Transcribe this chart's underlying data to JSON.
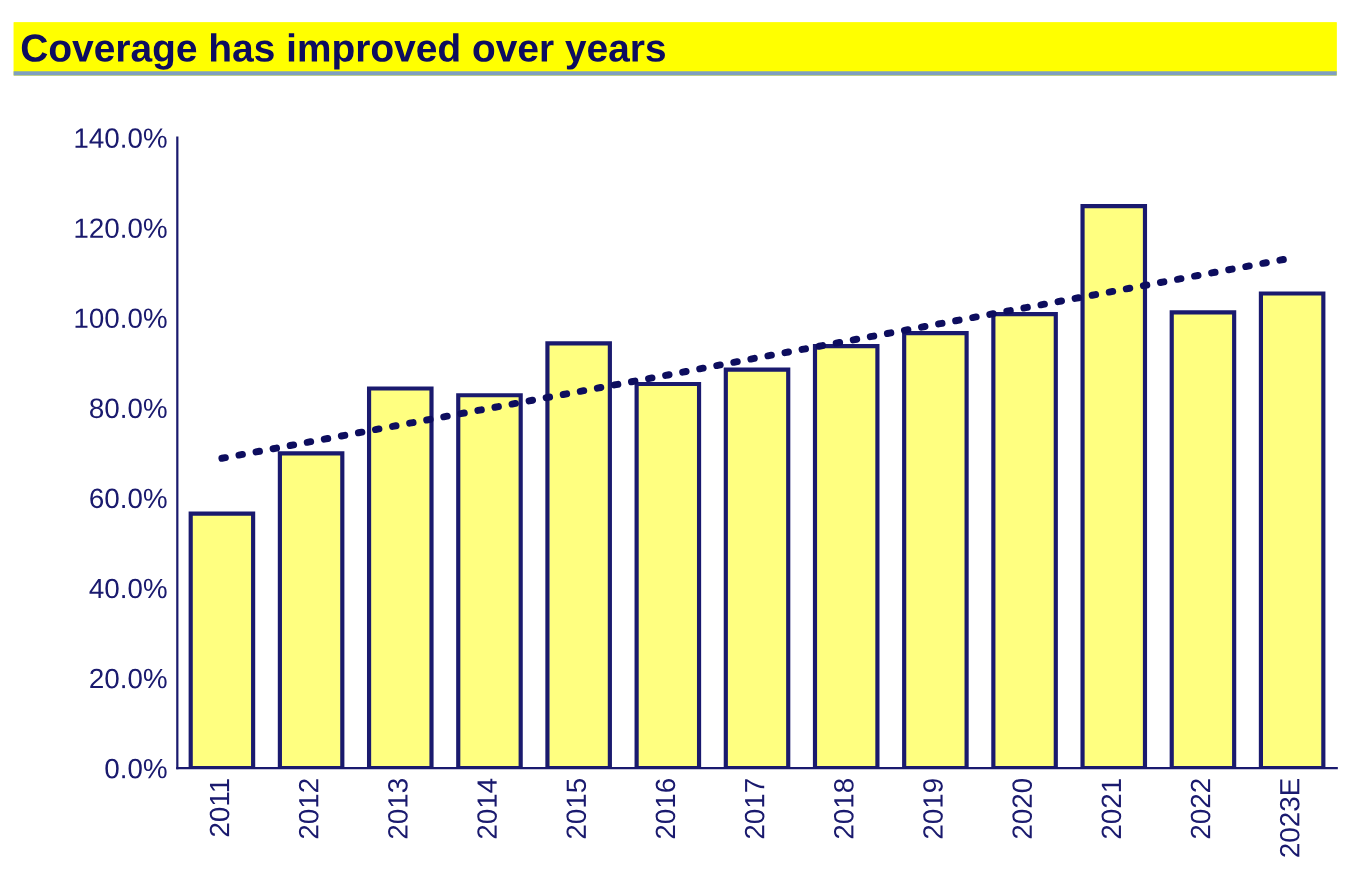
{
  "chart_data": {
    "type": "bar",
    "title": "Coverage has improved over years",
    "categories": [
      "2011",
      "2012",
      "2013",
      "2014",
      "2015",
      "2016",
      "2017",
      "2018",
      "2019",
      "2020",
      "2021",
      "2022",
      "2023E"
    ],
    "series": [
      {
        "color": "#ffff80",
        "values": [
          56.5,
          69.9,
          84.3,
          82.8,
          94.3,
          85.3,
          88.5,
          93.7,
          96.6,
          100.8,
          124.8,
          101.2,
          105.4
        ]
      },
      {
        "type": "line",
        "color": "#0d0d5e",
        "line_style": "dotted",
        "values": [
          68.8,
          72.5,
          76.2,
          79.9,
          83.6,
          87.3,
          91.1,
          94.8,
          98.5,
          102.2,
          105.9,
          109.6,
          113.3
        ]
      }
    ],
    "ylim": [
      0,
      140
    ],
    "yticks": [
      {
        "value": 0,
        "label": "0.0%"
      },
      {
        "value": 20,
        "label": "20.0%"
      },
      {
        "value": 40,
        "label": "40.0%"
      },
      {
        "value": 60,
        "label": "60.0%"
      },
      {
        "value": 80,
        "label": "80.0%"
      },
      {
        "value": 100,
        "label": "100.0%"
      },
      {
        "value": 120,
        "label": "120.0%"
      },
      {
        "value": 140,
        "label": "140.0%"
      }
    ],
    "grid": false,
    "legend": false
  }
}
